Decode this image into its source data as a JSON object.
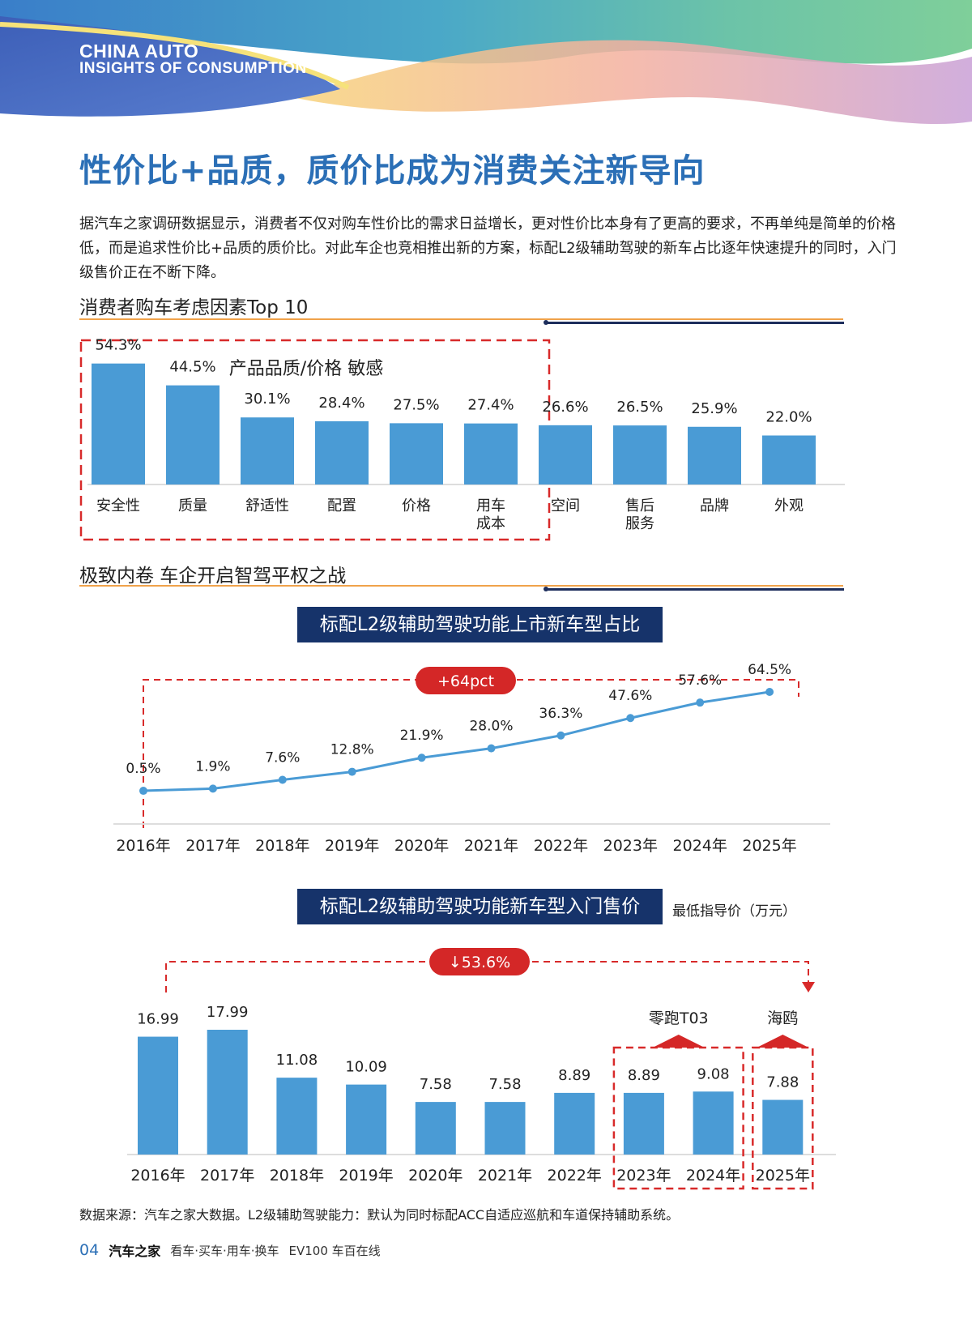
{
  "header": {
    "brand_line1": "CHINA AUTO",
    "brand_line2": "INSIGHTS OF CONSUMPTION"
  },
  "page_title": "性价比+品质，质价比成为消费关注新导向",
  "intro_text": "据汽车之家调研数据显示，消费者不仅对购车性价比的需求日益增长，更对性价比本身有了更高的要求，不再单纯是简单的价格低，而是追求性价比+品质的质价比。对此车企也竞相推出新的方案，标配L2级辅助驾驶的新车占比逐年快速提升的同时，入门级售价正在不断下降。",
  "sections": {
    "factors_title": "消费者购车考虑因素Top 10",
    "l2_title": "极致内卷 车企开启智驾平权之战"
  },
  "chart_data": [
    {
      "type": "bar",
      "title": "",
      "group_label": "产品品质/价格 敏感",
      "categories": [
        "安全性",
        "质量",
        "舒适性",
        "配置",
        "价格",
        "用车成本",
        "空间",
        "售后服务",
        "品牌",
        "外观"
      ],
      "category_lines": [
        [
          "安全性"
        ],
        [
          "质量"
        ],
        [
          "舒适性"
        ],
        [
          "配置"
        ],
        [
          "价格"
        ],
        [
          "用车",
          "成本"
        ],
        [
          "空间"
        ],
        [
          "售后",
          "服务"
        ],
        [
          "品牌"
        ],
        [
          "外观"
        ]
      ],
      "values": [
        54.3,
        44.5,
        30.1,
        28.4,
        27.5,
        27.4,
        26.6,
        26.5,
        25.9,
        22.0
      ],
      "value_labels": [
        "54.3%",
        "44.5%",
        "30.1%",
        "28.4%",
        "27.5%",
        "27.4%",
        "26.6%",
        "26.5%",
        "25.9%",
        "22.0%"
      ],
      "highlight_count": 6,
      "ylim": [
        0,
        60
      ],
      "color": "#4a9bd5"
    },
    {
      "type": "line",
      "title": "标配L2级辅助驾驶功能上市新车型占比",
      "categories": [
        "2016年",
        "2017年",
        "2018年",
        "2019年",
        "2020年",
        "2021年",
        "2022年",
        "2023年",
        "2024年",
        "2025年"
      ],
      "values": [
        0.5,
        1.9,
        7.6,
        12.8,
        21.9,
        28.0,
        36.3,
        47.6,
        57.6,
        64.5
      ],
      "value_labels": [
        "0.5%",
        "1.9%",
        "7.6%",
        "12.8%",
        "21.9%",
        "28.0%",
        "36.3%",
        "47.6%",
        "57.6%",
        "64.5%"
      ],
      "annotation": "+64pct",
      "ylim": [
        0,
        70
      ],
      "color": "#4a9bd5"
    },
    {
      "type": "bar",
      "title": "标配L2级辅助驾驶功能新车型入门售价",
      "unit_label": "最低指导价（万元）",
      "categories": [
        "2016年",
        "2017年",
        "2018年",
        "2019年",
        "2020年",
        "2021年",
        "2022年",
        "2023年",
        "2024年",
        "2025年"
      ],
      "values": [
        16.99,
        17.99,
        11.08,
        10.09,
        7.58,
        7.58,
        8.89,
        8.89,
        9.08,
        7.88
      ],
      "value_labels": [
        "16.99",
        "17.99",
        "11.08",
        "10.09",
        "7.58",
        "7.58",
        "8.89",
        "8.89",
        "9.08",
        "7.88"
      ],
      "annotation": "↓53.6%",
      "callouts": [
        {
          "label": "零跑T03",
          "from_index": 7,
          "to_index": 8
        },
        {
          "label": "海鸥",
          "from_index": 9,
          "to_index": 9
        }
      ],
      "ylim": [
        0,
        19
      ],
      "color": "#4a9bd5"
    }
  ],
  "source_note": "数据来源：汽车之家大数据。L2级辅助驾驶能力：默认为同时标配ACC自适应巡航和车道保持辅助系统。",
  "footer": {
    "page_number": "04",
    "brand": "汽车之家",
    "slogan": "看车·买车·用车·换车",
    "brand2": "EV100 车百在线"
  }
}
